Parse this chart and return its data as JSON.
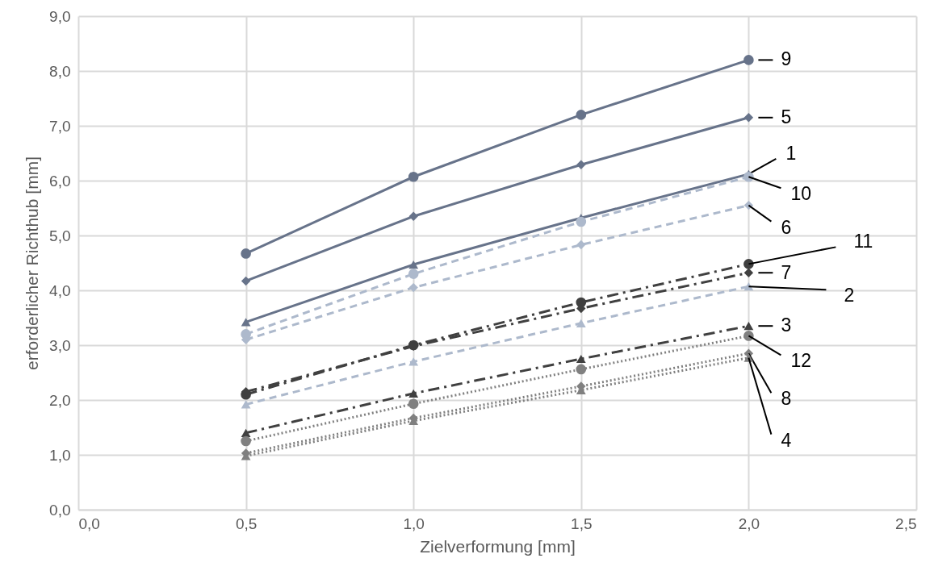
{
  "chart_data": {
    "type": "line",
    "xlabel": "Zielverformung [mm]",
    "ylabel": "erforderlicher Richthub [mm]",
    "x": [
      0.5,
      1.0,
      1.5,
      2.0
    ],
    "xlim": [
      0,
      2.5
    ],
    "ylim": [
      0,
      9
    ],
    "xticks": [
      {
        "value": 0,
        "label": "0,0"
      },
      {
        "value": 0.5,
        "label": "0,5"
      },
      {
        "value": 1,
        "label": "1,0"
      },
      {
        "value": 1.5,
        "label": "1,5"
      },
      {
        "value": 2,
        "label": "2,0"
      },
      {
        "value": 2.5,
        "label": "2,5"
      }
    ],
    "yticks": [
      {
        "value": 0,
        "label": "0,0"
      },
      {
        "value": 1,
        "label": "1,0"
      },
      {
        "value": 2,
        "label": "2,0"
      },
      {
        "value": 3,
        "label": "3,0"
      },
      {
        "value": 4,
        "label": "4,0"
      },
      {
        "value": 5,
        "label": "5,0"
      },
      {
        "value": 6,
        "label": "6,0"
      },
      {
        "value": 7,
        "label": "7,0"
      },
      {
        "value": 8,
        "label": "8,0"
      },
      {
        "value": 9,
        "label": "9,0"
      }
    ],
    "grid": true,
    "series": [
      {
        "name": "9",
        "color": "#67738a",
        "marker": "circle",
        "line_style": "solid",
        "values": [
          4.67,
          6.07,
          7.2,
          8.2
        ]
      },
      {
        "name": "5",
        "color": "#67738a",
        "marker": "diamond",
        "line_style": "solid",
        "values": [
          4.17,
          5.35,
          6.29,
          7.15
        ]
      },
      {
        "name": "1",
        "color": "#67738a",
        "marker": "triangle",
        "line_style": "solid",
        "values": [
          3.42,
          4.47,
          5.32,
          6.12
        ]
      },
      {
        "name": "10",
        "color": "#adb9cc",
        "marker": "circle",
        "line_style": "dashed",
        "values": [
          3.2,
          4.3,
          5.25,
          6.07
        ]
      },
      {
        "name": "6",
        "color": "#adb9cc",
        "marker": "diamond",
        "line_style": "dashed",
        "values": [
          3.1,
          4.05,
          4.83,
          5.55
        ]
      },
      {
        "name": "11",
        "color": "#404040",
        "marker": "circle",
        "line_style": "dashdot",
        "values": [
          2.1,
          3.0,
          3.78,
          4.48
        ]
      },
      {
        "name": "7",
        "color": "#404040",
        "marker": "diamond",
        "line_style": "dashdot",
        "values": [
          2.15,
          2.98,
          3.67,
          4.32
        ]
      },
      {
        "name": "2",
        "color": "#adb9cc",
        "marker": "triangle",
        "line_style": "dashed",
        "values": [
          1.92,
          2.7,
          3.4,
          4.07
        ]
      },
      {
        "name": "3",
        "color": "#404040",
        "marker": "triangle",
        "line_style": "dashdot",
        "values": [
          1.4,
          2.12,
          2.75,
          3.35
        ]
      },
      {
        "name": "12",
        "color": "#808080",
        "marker": "circle",
        "line_style": "dotted",
        "values": [
          1.25,
          1.93,
          2.56,
          3.17
        ]
      },
      {
        "name": "8",
        "color": "#808080",
        "marker": "diamond",
        "line_style": "dotted",
        "values": [
          1.03,
          1.67,
          2.25,
          2.85
        ]
      },
      {
        "name": "4",
        "color": "#808080",
        "marker": "triangle",
        "line_style": "dotted",
        "values": [
          0.98,
          1.62,
          2.18,
          2.77
        ]
      }
    ]
  }
}
